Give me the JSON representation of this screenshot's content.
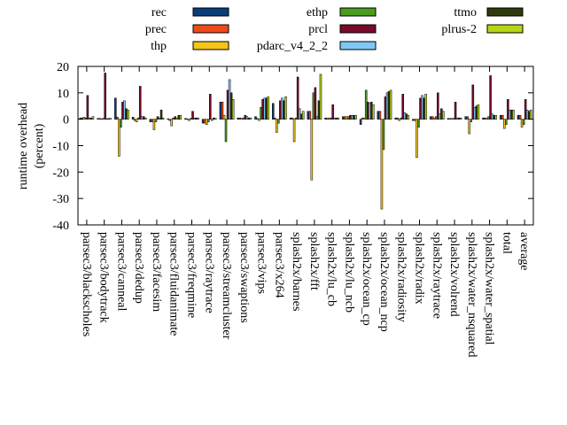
{
  "chart_data": {
    "type": "bar",
    "title": "",
    "xlabel": "",
    "ylabel": "runtime overhead (percent)",
    "ylabel_lines": [
      "runtime overhead",
      "(percent)"
    ],
    "ylim": [
      -40,
      20
    ],
    "yticks": [
      "20",
      "10",
      "0",
      "-10",
      "-20",
      "-30",
      "-40"
    ],
    "grid": false,
    "legend_position": "top",
    "categories": [
      "parsec3/blackscholes",
      "parsec3/bodytrack",
      "parsec3/canneal",
      "parsec3/dedup",
      "parsec3/facesim",
      "parsec3/fluidanimate",
      "parsec3/freqmine",
      "parsec3/raytrace",
      "parsec3/streamcluster",
      "parsec3/swaptions",
      "parsec3/vips",
      "parsec3/x264",
      "splash2x/barnes",
      "splash2x/fft",
      "splash2x/lu_cb",
      "splash2x/lu_ncb",
      "splash2x/ocean_cp",
      "splash2x/ocean_ncp",
      "splash2x/radiosity",
      "splash2x/radix",
      "splash2x/raytrace",
      "splash2x/volrend",
      "splash2x/water_nsquared",
      "splash2x/water_spatial",
      "total",
      "average"
    ],
    "series": [
      {
        "name": "rec",
        "color": "#0b3d7a",
        "values": [
          0.5,
          0.3,
          8.0,
          0.8,
          -1.0,
          0.2,
          0.3,
          -1.5,
          6.5,
          0.5,
          1.0,
          6.0,
          0.5,
          3.0,
          0.5,
          1.0,
          -2.0,
          3.0,
          0.5,
          -0.5,
          1.0,
          0.3,
          1.0,
          0.5,
          1.5,
          1.5
        ]
      },
      {
        "name": "prec",
        "color": "#f04a1a",
        "values": [
          0.5,
          0.3,
          0.8,
          -0.5,
          -1.0,
          -0.5,
          0.1,
          -1.5,
          6.5,
          0.5,
          0.3,
          0.5,
          0.5,
          3.0,
          0.3,
          1.0,
          0.5,
          3.0,
          0.5,
          -0.5,
          1.0,
          0.3,
          1.0,
          0.5,
          1.5,
          1.5
        ]
      },
      {
        "name": "thp",
        "color": "#f5c518",
        "values": [
          0.8,
          0.2,
          -14.0,
          -1.0,
          -4.0,
          -2.5,
          -0.5,
          -2.0,
          1.5,
          0.3,
          -0.5,
          -5.0,
          -8.5,
          -23.0,
          0.5,
          1.0,
          0.5,
          -34.0,
          -0.5,
          -14.5,
          0.5,
          0.3,
          -5.5,
          0.3,
          -3.5,
          -3.0
        ]
      },
      {
        "name": "ethp",
        "color": "#4a9c1f",
        "values": [
          0.5,
          0.3,
          -3.0,
          0.5,
          -1.0,
          0.5,
          0.3,
          -1.0,
          -8.5,
          0.5,
          4.5,
          -1.5,
          0.5,
          10.0,
          0.5,
          1.0,
          11.0,
          -11.5,
          0.5,
          -3.0,
          1.0,
          0.3,
          -1.0,
          1.0,
          -2.0,
          -2.0
        ]
      },
      {
        "name": "prcl",
        "color": "#7a0a2a",
        "values": [
          9.0,
          17.5,
          6.5,
          12.5,
          1.0,
          1.0,
          3.0,
          9.5,
          11.0,
          1.5,
          7.5,
          7.0,
          16.0,
          12.0,
          5.5,
          1.5,
          6.5,
          8.5,
          9.5,
          8.0,
          10.0,
          6.5,
          13.0,
          16.5,
          7.5,
          7.5
        ]
      },
      {
        "name": "pdarc_v4_2_2",
        "color": "#7ec8f5",
        "values": [
          0.5,
          0.2,
          7.0,
          1.0,
          0.5,
          0.3,
          0.5,
          -0.5,
          15.0,
          1.0,
          8.0,
          8.0,
          4.0,
          1.0,
          0.5,
          1.5,
          6.0,
          10.0,
          2.5,
          9.0,
          2.0,
          0.5,
          4.5,
          2.0,
          3.5,
          3.5
        ]
      },
      {
        "name": "ttmo",
        "color": "#2e3a0a",
        "values": [
          0.5,
          0.3,
          4.0,
          1.0,
          3.5,
          1.5,
          0.5,
          0.5,
          10.0,
          0.5,
          8.0,
          7.0,
          2.0,
          7.0,
          0.5,
          1.5,
          6.5,
          10.5,
          2.0,
          8.0,
          4.0,
          0.5,
          5.0,
          1.5,
          3.5,
          3.0
        ]
      },
      {
        "name": "plrus-2",
        "color": "#b5d615",
        "values": [
          1.0,
          0.3,
          3.5,
          0.5,
          0.5,
          1.5,
          0.5,
          0.3,
          7.5,
          0.5,
          8.5,
          8.5,
          3.0,
          17.0,
          0.5,
          1.5,
          5.5,
          11.0,
          1.5,
          9.5,
          3.0,
          0.5,
          5.5,
          1.5,
          3.5,
          3.5
        ]
      }
    ]
  }
}
